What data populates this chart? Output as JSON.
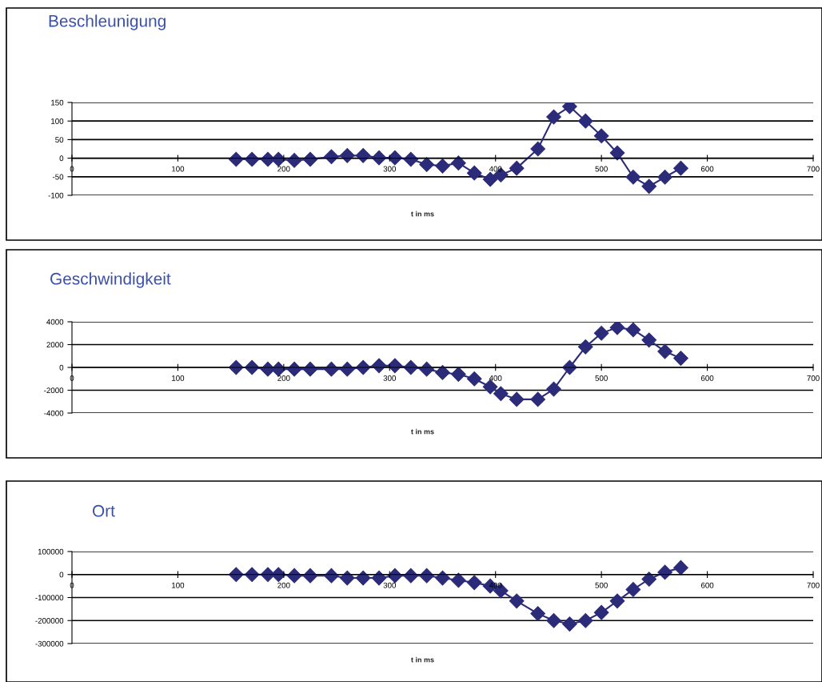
{
  "chart_data": [
    {
      "type": "line",
      "title": "Beschleunigung",
      "xlabel": "t in ms",
      "x": [
        155,
        170,
        185,
        195,
        210,
        225,
        245,
        260,
        275,
        290,
        305,
        320,
        335,
        350,
        365,
        380,
        395,
        405,
        420,
        440,
        455,
        470,
        485,
        500,
        515,
        530,
        545,
        560,
        575
      ],
      "series": [
        {
          "color": "#2b2b7a",
          "values": [
            -3,
            -3,
            -3,
            -3,
            -6,
            -3,
            4,
            7,
            7,
            1,
            1,
            -3,
            -17,
            -21,
            -13,
            -40,
            -57,
            -45,
            -27,
            25,
            111,
            139,
            100,
            60,
            14,
            -51,
            -76,
            -51,
            -27
          ]
        }
      ],
      "xlim": [
        0,
        700
      ],
      "xticks": [
        0,
        100,
        200,
        300,
        400,
        500,
        600,
        700
      ],
      "ylim": [
        -100,
        150
      ],
      "yticks": [
        -100,
        -50,
        0,
        50,
        100,
        150
      ],
      "grid": "y",
      "marker": "diamond",
      "line_style": "solid",
      "legend": false
    },
    {
      "type": "line",
      "title": "Geschwindigkeit",
      "xlabel": "t in ms",
      "x": [
        155,
        170,
        185,
        195,
        210,
        225,
        245,
        260,
        275,
        290,
        305,
        320,
        335,
        350,
        365,
        380,
        395,
        405,
        420,
        440,
        455,
        470,
        485,
        500,
        515,
        530,
        545,
        560,
        575
      ],
      "series": [
        {
          "color": "#2b2b7a",
          "values": [
            0,
            0,
            -150,
            -150,
            -150,
            -150,
            -150,
            -150,
            0,
            150,
            150,
            0,
            -150,
            -450,
            -600,
            -1000,
            -1700,
            -2300,
            -2800,
            -2800,
            -1900,
            0,
            1800,
            3000,
            3500,
            3300,
            2400,
            1400,
            800
          ]
        }
      ],
      "xlim": [
        0,
        700
      ],
      "xticks": [
        0,
        100,
        200,
        300,
        400,
        500,
        600,
        700
      ],
      "ylim": [
        -4000,
        4000
      ],
      "yticks": [
        -4000,
        -2000,
        0,
        2000,
        4000
      ],
      "grid": "y",
      "marker": "diamond",
      "line_style": "solid",
      "legend": false
    },
    {
      "type": "line",
      "title": "Ort",
      "xlabel": "t in ms",
      "x": [
        155,
        170,
        185,
        195,
        210,
        225,
        245,
        260,
        275,
        290,
        305,
        320,
        335,
        350,
        365,
        380,
        395,
        405,
        420,
        440,
        455,
        470,
        485,
        500,
        515,
        530,
        545,
        560,
        575
      ],
      "series": [
        {
          "color": "#2b2b7a",
          "values": [
            0,
            0,
            0,
            0,
            -5000,
            -5000,
            -5000,
            -15000,
            -15000,
            -15000,
            -5000,
            -5000,
            -5000,
            -15000,
            -25000,
            -35000,
            -50000,
            -70000,
            -115000,
            -170000,
            -200000,
            -215000,
            -200000,
            -165000,
            -115000,
            -65000,
            -20000,
            10000,
            30000
          ]
        }
      ],
      "xlim": [
        0,
        700
      ],
      "xticks": [
        0,
        100,
        200,
        300,
        400,
        500,
        600,
        700
      ],
      "ylim": [
        -300000,
        100000
      ],
      "yticks": [
        -300000,
        -200000,
        -100000,
        0,
        100000
      ],
      "grid": "y",
      "marker": "diamond",
      "line_style": "solid",
      "legend": false
    }
  ]
}
